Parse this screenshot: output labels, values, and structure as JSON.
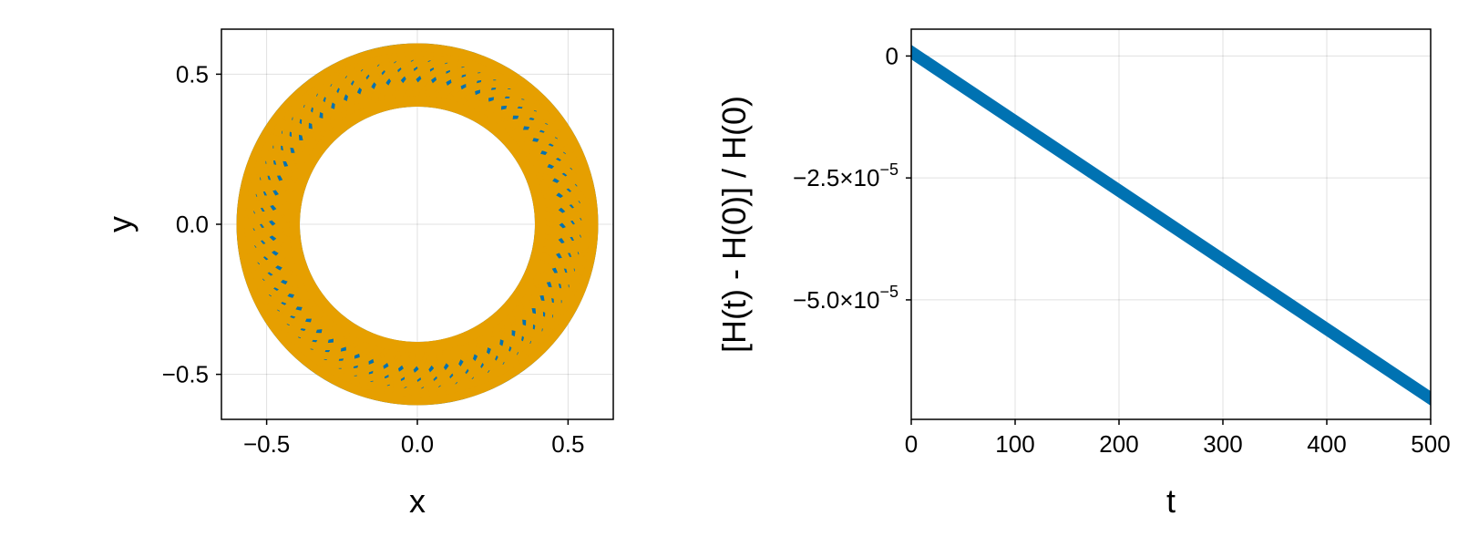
{
  "chart_data": [
    {
      "type": "scatter",
      "title": "",
      "xlabel": "x",
      "ylabel": "y",
      "xlim": [
        -0.65,
        0.65
      ],
      "ylim": [
        -0.65,
        0.65
      ],
      "grid": true,
      "xticks": [
        -0.5,
        0.0,
        0.5
      ],
      "yticks": [
        -0.5,
        0.0,
        0.5
      ],
      "xtick_labels": [
        "−0.5",
        "0.0",
        "0.5"
      ],
      "ytick_labels": [
        "−0.5",
        "0.0",
        "0.5"
      ],
      "series": [
        {
          "kind": "orbit-path",
          "color": "#0072B2",
          "description_values": {
            "inner_radius": 0.39,
            "outer_radius": 0.6,
            "lobes": 60
          }
        },
        {
          "kind": "orbit-path",
          "color": "#E69F00",
          "description_values": {
            "inner_radius": 0.39,
            "outer_radius": 0.6,
            "lobes": 60
          }
        }
      ]
    },
    {
      "type": "line",
      "title": "",
      "xlabel": "t",
      "ylabel": "[H(t) - H(0)] / H(0)",
      "xlim": [
        0,
        500
      ],
      "ylim": [
        -7.45e-05,
        5.5e-06
      ],
      "grid": true,
      "xticks": [
        0,
        100,
        200,
        300,
        400,
        500
      ],
      "xtick_labels": [
        "0",
        "100",
        "200",
        "300",
        "400",
        "500"
      ],
      "yticks": [
        0,
        -2.5e-05,
        -5e-05
      ],
      "ytick_labels": [
        {
          "base": "0",
          "exp": ""
        },
        {
          "base": "−2.5×10",
          "exp": "−5"
        },
        {
          "base": "−5.0×10",
          "exp": "−5"
        }
      ],
      "series": [
        {
          "color": "#0072B2",
          "x": [
            0,
            100,
            200,
            300,
            400,
            500
          ],
          "y": [
            8e-07,
            -1.34e-05,
            -2.76e-05,
            -4.18e-05,
            -5.6e-05,
            -7.02e-05
          ],
          "band_halfwidth": 1.5e-06
        }
      ]
    }
  ]
}
